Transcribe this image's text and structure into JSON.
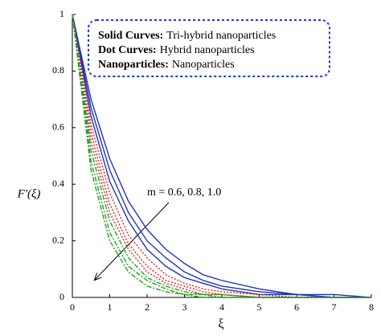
{
  "chart_data": {
    "type": "line",
    "x_label": "ξ",
    "y_label": "F′(ξ)",
    "annotation": "m = 0.6, 0.8, 1.0",
    "legend_entries": [
      {
        "style": "Solid Curves:",
        "text": "Tri-hybrid nanoparticles"
      },
      {
        "style": "Dot Curves:",
        "text": "Hybrid nanoparticles"
      },
      {
        "style": "Nanoparticles:",
        "text": "Nanoparticles"
      }
    ],
    "x": [
      0,
      0.5,
      1,
      1.5,
      2,
      2.5,
      3,
      3.5,
      4,
      5,
      6,
      7,
      8
    ],
    "series": [
      {
        "color": "#2233bb",
        "dash": "solid",
        "values": [
          1,
          0.7,
          0.49,
          0.34,
          0.24,
          0.17,
          0.12,
          0.08,
          0.06,
          0.03,
          0.01,
          0.01,
          0
        ]
      },
      {
        "color": "#2233bb",
        "dash": "solid",
        "values": [
          1,
          0.67,
          0.45,
          0.3,
          0.2,
          0.14,
          0.09,
          0.06,
          0.04,
          0.02,
          0.01,
          0,
          0
        ]
      },
      {
        "color": "#2233bb",
        "dash": "solid",
        "values": [
          1,
          0.64,
          0.41,
          0.27,
          0.17,
          0.11,
          0.07,
          0.05,
          0.03,
          0.01,
          0.01,
          0,
          0
        ]
      },
      {
        "color": "#dd2222",
        "dash": "dot",
        "values": [
          1,
          0.61,
          0.37,
          0.22,
          0.14,
          0.08,
          0.05,
          0.03,
          0.02,
          0.01,
          0,
          0,
          0
        ]
      },
      {
        "color": "#dd2222",
        "dash": "dot",
        "values": [
          1,
          0.58,
          0.33,
          0.19,
          0.11,
          0.06,
          0.04,
          0.02,
          0.01,
          0,
          0,
          0,
          0
        ]
      },
      {
        "color": "#dd2222",
        "dash": "dot",
        "values": [
          1,
          0.55,
          0.3,
          0.17,
          0.09,
          0.05,
          0.03,
          0.01,
          0.01,
          0,
          0,
          0,
          0
        ]
      },
      {
        "color": "#22a022",
        "dash": "dashdot",
        "values": [
          1,
          0.52,
          0.27,
          0.14,
          0.07,
          0.04,
          0.02,
          0.01,
          0.01,
          0,
          0,
          0,
          0
        ]
      },
      {
        "color": "#22a022",
        "dash": "dashdot",
        "values": [
          1,
          0.48,
          0.23,
          0.11,
          0.06,
          0.03,
          0.01,
          0.01,
          0,
          0,
          0,
          0,
          0
        ]
      },
      {
        "color": "#22a022",
        "dash": "dashdot",
        "values": [
          1,
          0.45,
          0.2,
          0.09,
          0.04,
          0.02,
          0.01,
          0,
          0,
          0,
          0,
          0,
          0
        ]
      }
    ],
    "xlim": [
      0,
      8
    ],
    "ylim": [
      0,
      1
    ],
    "xticks": [
      0,
      1,
      2,
      3,
      4,
      5,
      6,
      7,
      8
    ],
    "yticks": [
      0,
      0.2,
      0.4,
      0.6,
      0.8,
      1
    ]
  }
}
